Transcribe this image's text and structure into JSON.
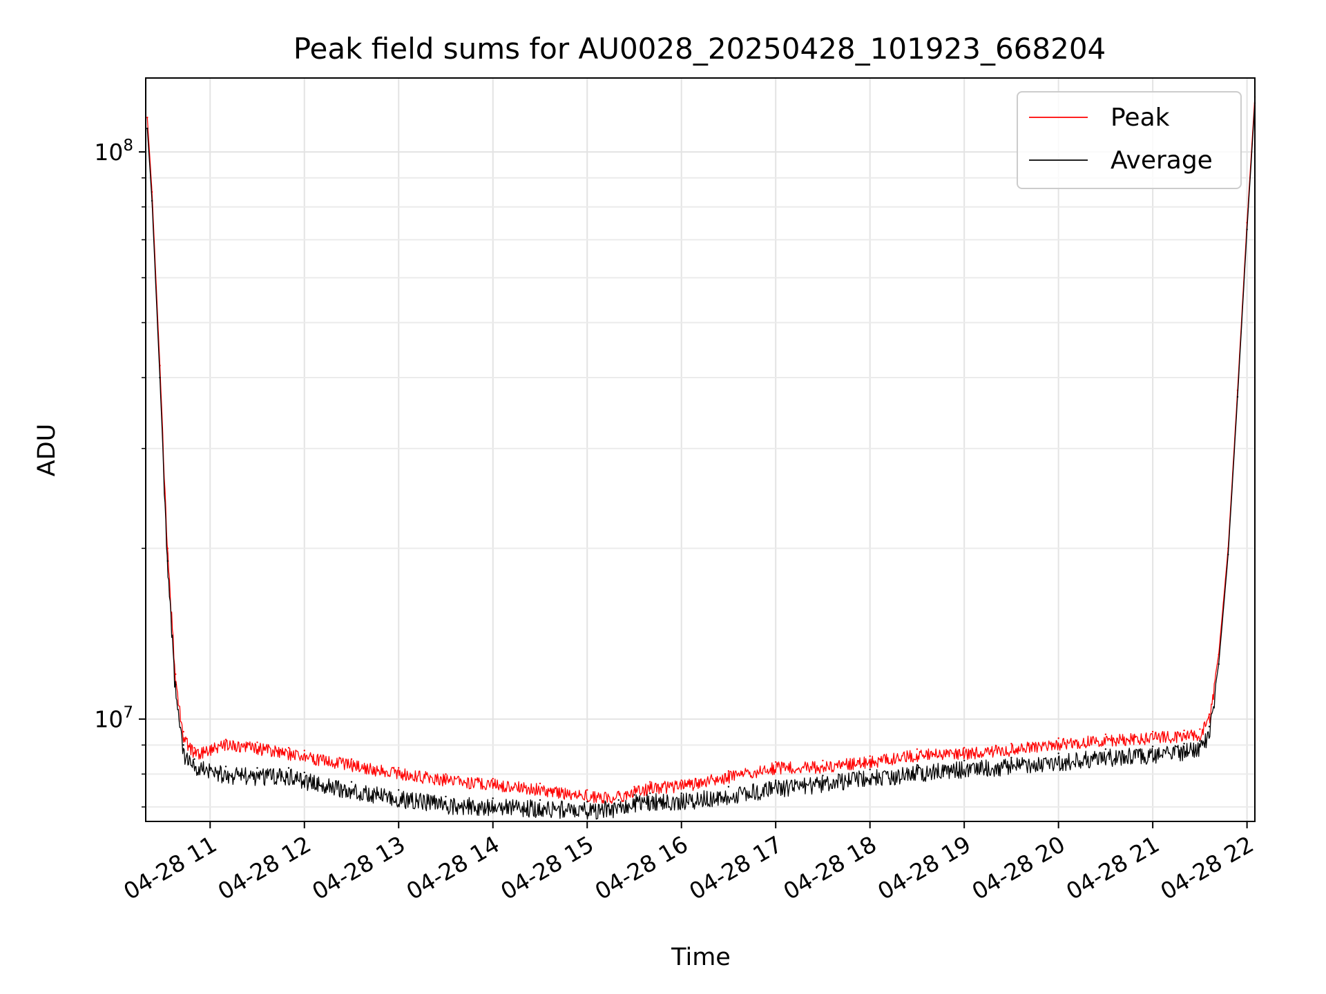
{
  "chart_data": {
    "type": "line",
    "title": "Peak field sums for AU0028_20250428_101923_668204",
    "xlabel": "Time",
    "ylabel": "ADU",
    "xscale": "time",
    "yscale": "log",
    "xlim": [
      "04-28 10:19",
      "04-28 22:05"
    ],
    "ylim": [
      6600000,
      135000000
    ],
    "grid": true,
    "legend": "top-right",
    "x_ticks": [
      "04-28 11",
      "04-28 12",
      "04-28 13",
      "04-28 14",
      "04-28 15",
      "04-28 16",
      "04-28 17",
      "04-28 18",
      "04-28 19",
      "04-28 20",
      "04-28 21",
      "04-28 22"
    ],
    "y_ticks": [
      {
        "value": 10000000,
        "base": "10",
        "exp": "7"
      },
      {
        "value": 100000000,
        "base": "10",
        "exp": "8"
      }
    ],
    "x": [
      "04-28 10:20",
      "04-28 10:23",
      "04-28 10:28",
      "04-28 10:33",
      "04-28 10:38",
      "04-28 10:43",
      "04-28 10:50",
      "04-28 11:10",
      "04-28 11:30",
      "04-28 11:50",
      "04-28 12:00",
      "04-28 12:30",
      "04-28 13:00",
      "04-28 13:30",
      "04-28 14:00",
      "04-28 14:30",
      "04-28 15:00",
      "04-28 15:20",
      "04-28 15:30",
      "04-28 15:40",
      "04-28 16:00",
      "04-28 16:30",
      "04-28 17:00",
      "04-28 17:30",
      "04-28 18:00",
      "04-28 18:30",
      "04-28 19:00",
      "04-28 19:30",
      "04-28 20:00",
      "04-28 20:30",
      "04-28 21:00",
      "04-28 21:20",
      "04-28 21:30",
      "04-28 21:36",
      "04-28 21:42",
      "04-28 21:48",
      "04-28 21:54",
      "04-28 22:00",
      "04-28 22:05"
    ],
    "series": [
      {
        "name": "Peak",
        "color": "#ff0000",
        "values": [
          115000000,
          85000000,
          42000000,
          20000000,
          12000000,
          9500000,
          8900000,
          9200000,
          9100000,
          8900000,
          8800000,
          8500000,
          8200000,
          8000000,
          7850000,
          7700000,
          7500000,
          7450000,
          7600000,
          7750000,
          7800000,
          8100000,
          8400000,
          8450000,
          8600000,
          8850000,
          8900000,
          9050000,
          9250000,
          9400000,
          9500000,
          9550000,
          9600000,
          10200000,
          13000000,
          20000000,
          38000000,
          75000000,
          125000000
        ]
      },
      {
        "name": "Average",
        "color": "#000000",
        "values": [
          110000000,
          82000000,
          40000000,
          19000000,
          11500000,
          9000000,
          8500000,
          8250000,
          8200000,
          8200000,
          8050000,
          7750000,
          7500000,
          7300000,
          7250000,
          7200000,
          7150000,
          7200000,
          7350000,
          7400000,
          7400000,
          7600000,
          7800000,
          7950000,
          8150000,
          8300000,
          8450000,
          8550000,
          8700000,
          8850000,
          8950000,
          9050000,
          9150000,
          9700000,
          12500000,
          19500000,
          37000000,
          73000000,
          122000000
        ]
      }
    ]
  }
}
